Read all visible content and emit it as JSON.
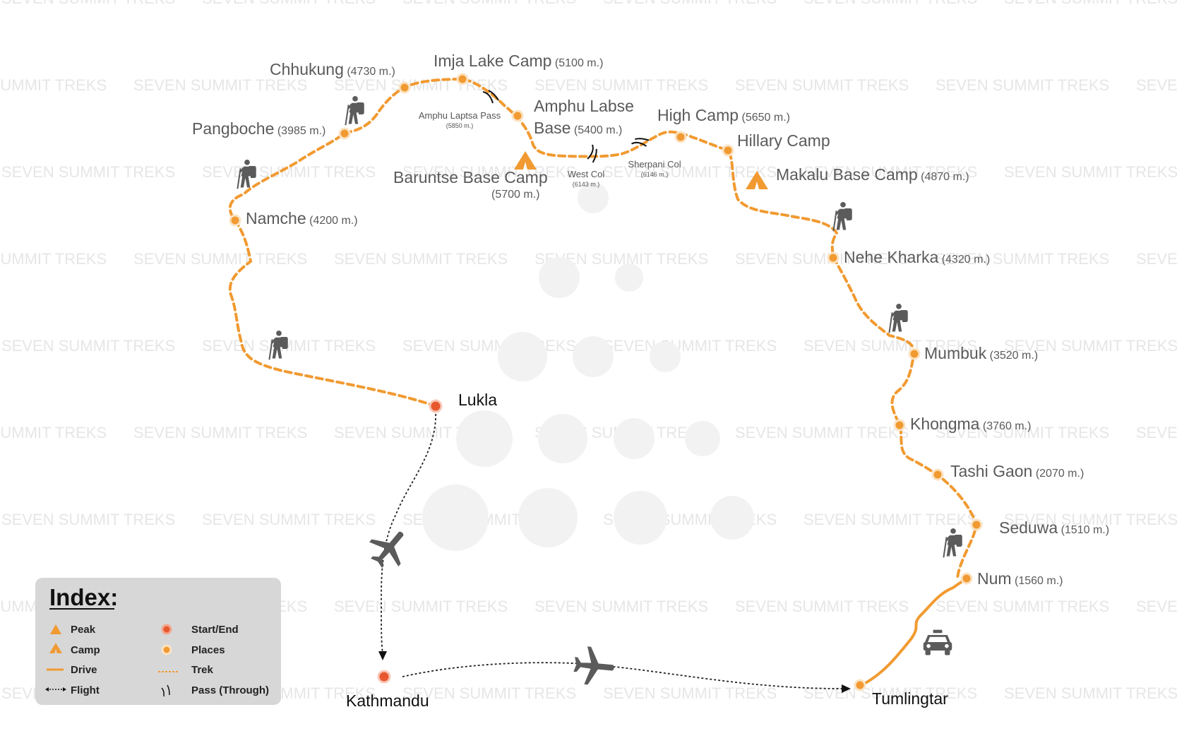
{
  "watermark": {
    "text": "SEVEN SUMMIT TREKS"
  },
  "colors": {
    "trek": "#f19a31",
    "start_end": "#e8582f",
    "place": "#f19a31",
    "icon_gray": "#5b5b5b",
    "index_bg": "#d7d7d7"
  },
  "places": [
    {
      "id": "namche",
      "name": "Namche",
      "elev": "(4200 m.)"
    },
    {
      "id": "pangboche",
      "name": "Pangboche",
      "elev": "(3985 m.)"
    },
    {
      "id": "chhukung",
      "name": "Chhukung",
      "elev": "(4730 m.)"
    },
    {
      "id": "imja",
      "name": "Imja Lake Camp",
      "elev": "(5100 m.)"
    },
    {
      "id": "amphu",
      "name": "Amphu Labse",
      "name2": "Base",
      "elev": "(5400 m.)"
    },
    {
      "id": "baruntse",
      "name": "Baruntse Base Camp",
      "elev": "(5700 m.)"
    },
    {
      "id": "highcamp",
      "name": "High Camp",
      "elev": "(5650 m.)"
    },
    {
      "id": "hillary",
      "name": "Hillary Camp",
      "elev": ""
    },
    {
      "id": "makalu",
      "name": "Makalu Base Camp",
      "elev": "(4870 m.)"
    },
    {
      "id": "nehe",
      "name": "Nehe Kharka",
      "elev": "(4320 m.)"
    },
    {
      "id": "mumbuk",
      "name": "Mumbuk",
      "elev": "(3520 m.)"
    },
    {
      "id": "khongma",
      "name": "Khongma",
      "elev": "(3760 m.)"
    },
    {
      "id": "tashi",
      "name": "Tashi Gaon",
      "elev": "(2070 m.)"
    },
    {
      "id": "seduwa",
      "name": "Seduwa",
      "elev": "(1510 m.)"
    },
    {
      "id": "num",
      "name": "Num",
      "elev": "(1560 m.)"
    }
  ],
  "start_end": [
    {
      "id": "lukla",
      "name": "Lukla"
    },
    {
      "id": "kathmandu",
      "name": "Kathmandu"
    },
    {
      "id": "tumlingtar",
      "name": "Tumlingtar"
    }
  ],
  "passes": [
    {
      "id": "amphu-laptsa",
      "name": "Amphu Laptsa Pass",
      "elev": "(5850 m.)"
    },
    {
      "id": "west-col",
      "name": "West Col",
      "elev": "(6143 m.)"
    },
    {
      "id": "sherpani-col",
      "name": "Sherpani Col",
      "elev": "(6146 m.)"
    }
  ],
  "icons": {
    "hiker": "hiker-icon",
    "plane": "airplane-icon",
    "car": "car-icon",
    "camp": "camp-icon",
    "peak": "peak-icon",
    "pass": "pass-icon"
  },
  "index": {
    "title": "Index:",
    "items": [
      {
        "key": "peak",
        "label": "Peak"
      },
      {
        "key": "start_end",
        "label": "Start/End"
      },
      {
        "key": "camp",
        "label": "Camp"
      },
      {
        "key": "places",
        "label": "Places"
      },
      {
        "key": "drive",
        "label": "Drive"
      },
      {
        "key": "trek",
        "label": "Trek"
      },
      {
        "key": "flight",
        "label": "Flight"
      },
      {
        "key": "pass",
        "label": "Pass (Through)"
      }
    ]
  }
}
